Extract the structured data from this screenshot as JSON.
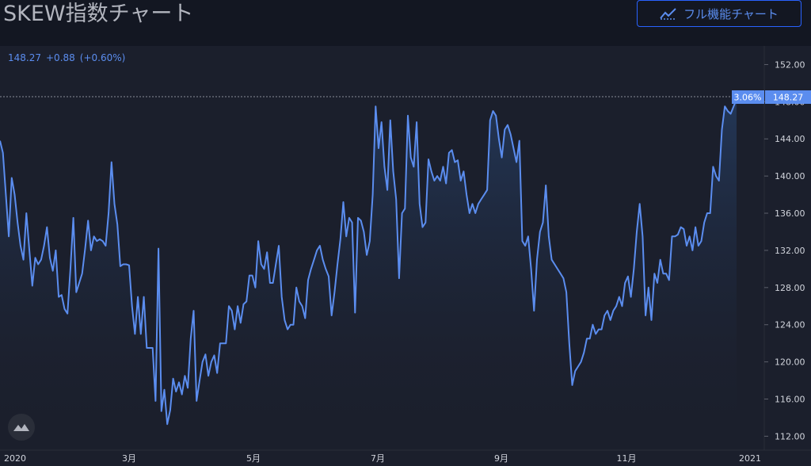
{
  "header": {
    "title": "SKEW指数チャート",
    "full_chart_label": "フル機能チャート"
  },
  "quote": {
    "last": "148.27",
    "change": "+0.88",
    "change_pct": "(+0.60%)"
  },
  "last_price_tag": {
    "pct_label": "3.06%",
    "price_label": "148.27"
  },
  "colors": {
    "background": "#131722",
    "line": "#5b8def",
    "accent": "#2962ff",
    "text": "#d1d4dc"
  },
  "chart_data": {
    "type": "area",
    "title": "SKEW指数チャート",
    "xlabel": "",
    "ylabel": "",
    "ylim": [
      110.5,
      154
    ],
    "y_ticks": [
      "152.00",
      "148.00",
      "144.00",
      "140.00",
      "136.00",
      "132.00",
      "128.00",
      "124.00",
      "120.00",
      "116.00",
      "112.00"
    ],
    "x_ticks": [
      "2020",
      "3月",
      "5月",
      "7月",
      "9月",
      "11月",
      "2021"
    ],
    "grid": false,
    "series": [
      {
        "values": [
          143.8,
          142.5,
          138.0,
          133.5,
          139.8,
          138.0,
          135.0,
          132.5,
          131.0,
          136.0,
          132.0,
          128.2,
          131.2,
          130.5,
          131.0,
          132.5,
          134.5,
          131.2,
          129.8,
          132.0,
          127.0,
          127.2,
          125.7,
          125.2,
          130.0,
          135.5,
          127.5,
          128.5,
          129.5,
          132.2,
          135.2,
          132.0,
          133.5,
          133.0,
          133.2,
          133.0,
          132.5,
          136.0,
          141.5,
          137.0,
          134.8,
          130.3,
          130.5,
          130.5,
          130.4,
          126.0,
          123.0,
          127.0,
          123.0,
          127.0,
          121.5,
          121.5,
          121.5,
          115.8,
          132.2,
          114.7,
          117.0,
          113.3,
          114.8,
          118.2,
          116.8,
          117.8,
          116.5,
          118.5,
          117.2,
          122.5,
          125.5,
          115.8,
          118.0,
          120.0,
          120.8,
          118.5,
          120.0,
          120.7,
          118.8,
          122.0,
          122.0,
          122.0,
          126.0,
          125.5,
          123.5,
          126.0,
          124.2,
          126.2,
          126.5,
          129.3,
          129.3,
          128.0,
          133.0,
          130.5,
          130.0,
          131.8,
          128.5,
          128.5,
          130.5,
          132.5,
          127.0,
          124.5,
          123.5,
          124.0,
          124.0,
          128.0,
          126.5,
          126.0,
          124.7,
          128.8,
          130.0,
          131.0,
          132.0,
          132.5,
          131.0,
          130.0,
          129.2,
          125.0,
          127.5,
          130.5,
          133.2,
          137.2,
          133.5,
          135.5,
          135.0,
          125.3,
          135.5,
          135.2,
          134.0,
          131.5,
          133.0,
          138.0,
          147.5,
          143.0,
          145.8,
          141.0,
          138.5,
          146.0,
          140.5,
          137.5,
          129.0,
          136.0,
          136.5,
          146.5,
          142.0,
          141.0,
          145.8,
          137.0,
          134.5,
          135.0,
          141.8,
          140.5,
          139.5,
          140.0,
          139.5,
          141.0,
          139.2,
          142.5,
          142.8,
          141.5,
          141.7,
          139.5,
          140.5,
          138.0,
          136.0,
          137.0,
          136.0,
          137.0,
          137.5,
          138.0,
          138.5,
          146.0,
          147.0,
          146.5,
          144.0,
          142.0,
          145.0,
          145.5,
          144.5,
          143.0,
          141.5,
          143.8,
          133.0,
          132.5,
          133.5,
          130.0,
          125.5,
          131.0,
          134.0,
          135.0,
          139.0,
          133.5,
          131.0,
          130.5,
          130.0,
          129.5,
          129.0,
          127.5,
          122.0,
          117.5,
          119.0,
          119.5,
          120.0,
          121.0,
          122.5,
          122.5,
          124.0,
          123.0,
          123.5,
          123.5,
          125.0,
          125.5,
          124.5,
          125.5,
          126.0,
          127.0,
          126.0,
          128.5,
          129.2,
          127.0,
          130.0,
          134.0,
          137.0,
          133.5,
          125.0,
          128.0,
          124.5,
          129.5,
          128.5,
          131.0,
          129.5,
          129.5,
          128.8,
          133.5,
          133.5,
          133.7,
          134.5,
          134.3,
          132.5,
          133.5,
          132.0,
          134.5,
          132.5,
          133.0,
          135.0,
          136.0,
          136.0,
          141.0,
          140.0,
          139.5,
          145.0,
          147.5,
          147.0,
          146.7,
          147.5,
          148.27
        ]
      }
    ]
  }
}
